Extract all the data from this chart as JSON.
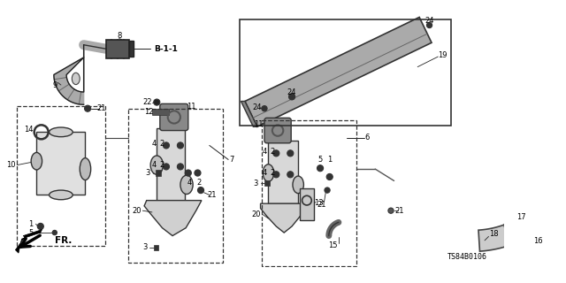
{
  "background_color": "#ffffff",
  "diagram_code": "TS84B0106",
  "figsize": [
    6.4,
    3.2
  ],
  "dpi": 100,
  "parts": {
    "elbow_pipe": {
      "color": "#444444",
      "lw": 1.2
    },
    "chamber": {
      "fill": "#e8e8e8",
      "edge": "#222222",
      "lw": 1.0
    },
    "bolt": {
      "r": 0.006,
      "color": "#333333"
    },
    "line": {
      "color": "#222222",
      "lw": 0.8
    }
  },
  "label_fontsize": 6.0,
  "b11_fontsize": 6.5,
  "code_fontsize": 6.0
}
